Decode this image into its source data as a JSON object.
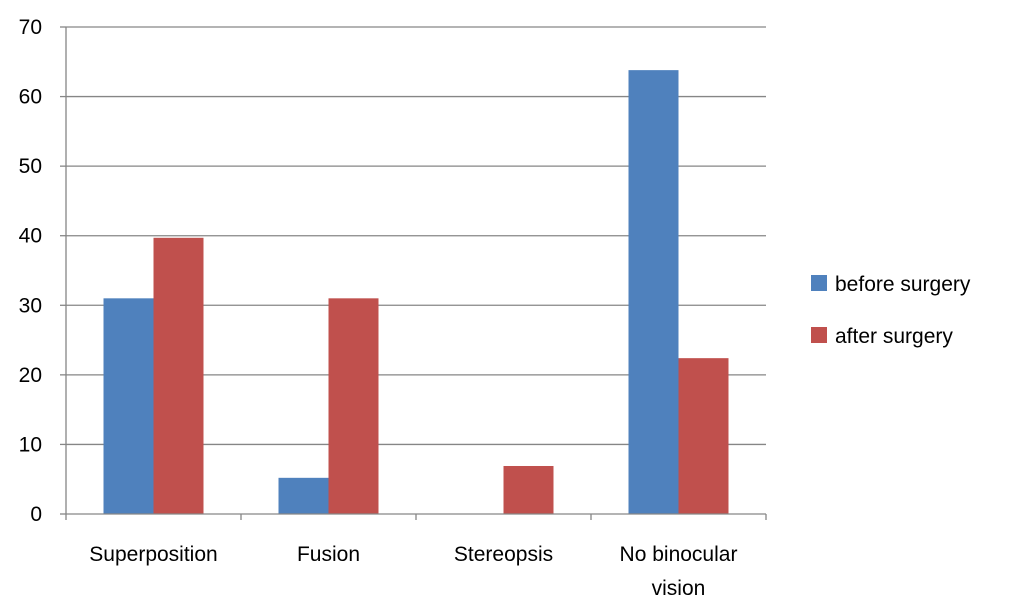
{
  "chart_data": {
    "type": "bar",
    "categories": [
      "Superposition",
      "Fusion",
      "Stereopsis",
      "No binocular vision"
    ],
    "category_lines": [
      [
        "Superposition"
      ],
      [
        "Fusion"
      ],
      [
        "Stereopsis"
      ],
      [
        "No binocular",
        "vision"
      ]
    ],
    "series": [
      {
        "name": "before surgery",
        "color": "#4F81BD",
        "values": [
          31,
          5.2,
          0,
          63.8
        ]
      },
      {
        "name": "after surgery",
        "color": "#C0504D",
        "values": [
          39.7,
          31,
          6.9,
          22.4
        ]
      }
    ],
    "ylim": [
      0,
      70
    ],
    "yticks": [
      0,
      10,
      20,
      30,
      40,
      50,
      60,
      70
    ],
    "grid": true,
    "legend_position": "right"
  }
}
